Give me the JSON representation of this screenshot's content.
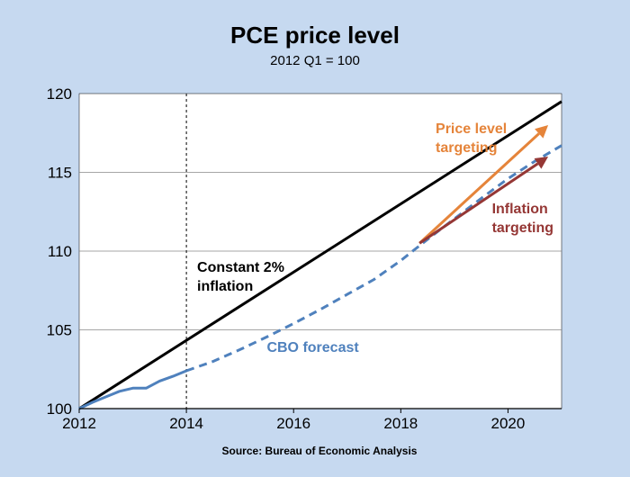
{
  "chart_data": {
    "type": "line",
    "title": "PCE price level",
    "subtitle": "2012 Q1 = 100",
    "source": "Source: Bureau of Economic Analysis",
    "xlim": [
      2012,
      2021
    ],
    "ylim": [
      100,
      120
    ],
    "xticks": [
      2012,
      2014,
      2016,
      2018,
      2020
    ],
    "yticks": [
      100,
      105,
      110,
      115,
      120
    ],
    "grid": "horizontal",
    "vline": {
      "x": 2014,
      "style": "dashed"
    },
    "series": [
      {
        "key": "constant",
        "style": "solid",
        "color": "#000000",
        "points": [
          [
            2012,
            100
          ],
          [
            2021,
            119.5
          ]
        ]
      },
      {
        "key": "actual",
        "style": "solid",
        "color": "#4f81bd",
        "points": [
          [
            2012,
            100
          ],
          [
            2012.25,
            100.4
          ],
          [
            2012.5,
            100.75
          ],
          [
            2012.75,
            101.1
          ],
          [
            2013,
            101.3
          ],
          [
            2013.25,
            101.3
          ],
          [
            2013.5,
            101.75
          ],
          [
            2013.75,
            102.05
          ],
          [
            2014,
            102.4
          ]
        ]
      },
      {
        "key": "cbo",
        "style": "dashed",
        "color": "#4f81bd",
        "points": [
          [
            2014,
            102.4
          ],
          [
            2014.5,
            103.0
          ],
          [
            2015,
            103.75
          ],
          [
            2015.5,
            104.55
          ],
          [
            2016,
            105.4
          ],
          [
            2016.5,
            106.3
          ],
          [
            2017,
            107.25
          ],
          [
            2017.5,
            108.2
          ],
          [
            2018,
            109.4
          ],
          [
            2018.5,
            110.75
          ],
          [
            2019,
            112.05
          ],
          [
            2019.5,
            113.35
          ],
          [
            2020,
            114.6
          ],
          [
            2020.5,
            115.7
          ],
          [
            2021,
            116.7
          ]
        ]
      }
    ],
    "arrows": [
      {
        "key": "price",
        "color": "#e5843a",
        "from": [
          2018.35,
          110.5
        ],
        "to": [
          2020.75,
          118.0
        ]
      },
      {
        "key": "inflation",
        "color": "#953735",
        "from": [
          2018.35,
          110.5
        ],
        "to": [
          2020.75,
          116.0
        ]
      }
    ],
    "annotations": [
      {
        "key": "constant",
        "lines": [
          "Constant 2%",
          "inflation"
        ],
        "color": "#000000",
        "x": 2014.2,
        "y": 108.7,
        "anchor": "start"
      },
      {
        "key": "cbo",
        "lines": [
          "CBO forecast"
        ],
        "color": "#4f81bd",
        "x": 2015.5,
        "y": 103.6,
        "anchor": "start"
      },
      {
        "key": "price",
        "lines": [
          "Price level",
          "targeting"
        ],
        "color": "#e5843a",
        "x": 2018.65,
        "y": 117.5,
        "anchor": "start"
      },
      {
        "key": "inflation",
        "lines": [
          "Inflation",
          "targeting"
        ],
        "color": "#953735",
        "x": 2019.7,
        "y": 112.4,
        "anchor": "start"
      }
    ]
  }
}
